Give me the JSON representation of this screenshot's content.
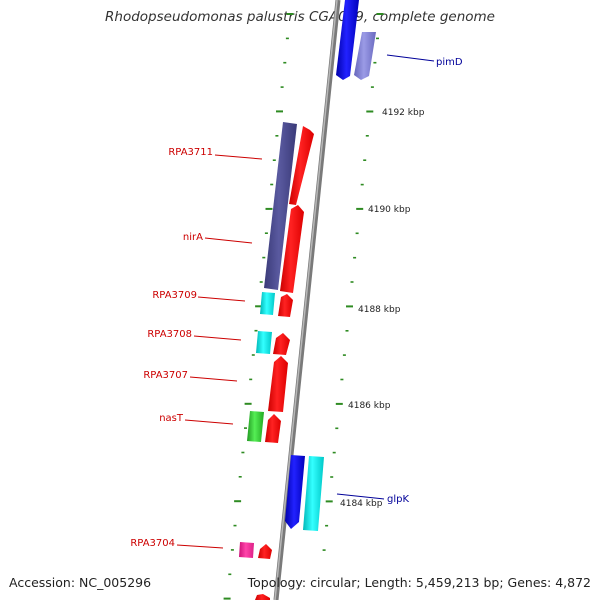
{
  "title": "Rhodopseudomonas palustris CGA009, complete genome",
  "accession": "Accession: NC_005296",
  "topology": "Topology: circular; Length: 5,459,213 bp; Genes: 4,872",
  "colors": {
    "backbone": "#8c8c8c",
    "tick": "#2e8b22",
    "label_left": "#cc0000",
    "label_right": "#000099",
    "kbp_text": "#222222"
  },
  "scale_labels": [
    "4184 kbp",
    "4186 kbp",
    "4188 kbp",
    "4190 kbp",
    "4192 kbp"
  ],
  "genes_left": [
    {
      "name": "RPA3711",
      "color": "#4a4a8e"
    },
    {
      "name": "nirA",
      "color": "#4a4a8e"
    },
    {
      "name": "RPA3709",
      "color": "#00e5e5"
    },
    {
      "name": "RPA3708",
      "color": "#00e5e5"
    },
    {
      "name": "RPA3707",
      "color": "#ff0000"
    },
    {
      "name": "nasT",
      "color": "#33cc33"
    },
    {
      "name": "RPA3704",
      "color": "#ff3399"
    }
  ],
  "genes_right": [
    {
      "name": "pimD",
      "color": "#8888dd"
    },
    {
      "name": "glpK",
      "color": "#00e5e5"
    }
  ]
}
